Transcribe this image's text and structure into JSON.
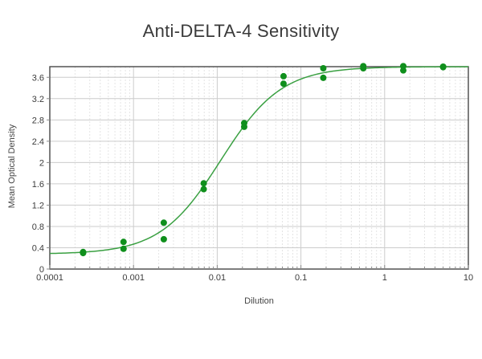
{
  "page": {
    "title": "Anti-DELTA-4 Sensitivity"
  },
  "chart_data": {
    "type": "scatter",
    "title": "Anti-DELTA-4 Sensitivity",
    "xlabel": "Dilution",
    "ylabel": "Mean Optical Density",
    "x_scale": "log",
    "xlim": [
      0.0001,
      10
    ],
    "ylim": [
      0,
      3.8
    ],
    "x_ticks": [
      0.0001,
      0.001,
      0.01,
      0.1,
      1,
      10
    ],
    "x_tick_labels": [
      "0.0001",
      "0.001",
      "0.01",
      "0.1",
      "1",
      "10"
    ],
    "y_ticks": [
      0,
      0.4,
      0.8,
      1.2,
      1.6,
      2,
      2.4,
      2.8,
      3.2,
      3.6
    ],
    "y_tick_labels": [
      "0",
      "0.4",
      "0.8",
      "1.2",
      "1.6",
      "2",
      "2.4",
      "2.8",
      "3.2",
      "3.6"
    ],
    "grid": true,
    "legend": "none",
    "series": [
      {
        "name": "replicate-od-readings",
        "points": [
          {
            "x": 0.00025,
            "y": 0.3
          },
          {
            "x": 0.00025,
            "y": 0.32
          },
          {
            "x": 0.00076,
            "y": 0.38
          },
          {
            "x": 0.00076,
            "y": 0.51
          },
          {
            "x": 0.0023,
            "y": 0.56
          },
          {
            "x": 0.0023,
            "y": 0.87
          },
          {
            "x": 0.0069,
            "y": 1.5
          },
          {
            "x": 0.0069,
            "y": 1.61
          },
          {
            "x": 0.021,
            "y": 2.67
          },
          {
            "x": 0.021,
            "y": 2.74
          },
          {
            "x": 0.062,
            "y": 3.48
          },
          {
            "x": 0.062,
            "y": 3.62
          },
          {
            "x": 0.185,
            "y": 3.59
          },
          {
            "x": 0.185,
            "y": 3.77
          },
          {
            "x": 0.556,
            "y": 3.77
          },
          {
            "x": 0.556,
            "y": 3.81
          },
          {
            "x": 1.67,
            "y": 3.73
          },
          {
            "x": 1.67,
            "y": 3.81
          },
          {
            "x": 5.0,
            "y": 3.79
          },
          {
            "x": 5.0,
            "y": 3.8
          }
        ]
      }
    ],
    "fit_curve": {
      "model": "4PL",
      "bottom": 0.28,
      "top": 3.8,
      "ec50": 0.011,
      "hill": 1.2
    },
    "colors": {
      "curve": "#3aa042",
      "point": "#0f8f1c",
      "frame": "#474747",
      "grid_major": "#cccccc",
      "grid_minor": "#e4e4e4",
      "tick": "#8a8a8a",
      "title_text": "#3a3a3a",
      "axis_text": "#454545",
      "tick_text": "#3c3c3c",
      "background": "#ffffff"
    }
  }
}
